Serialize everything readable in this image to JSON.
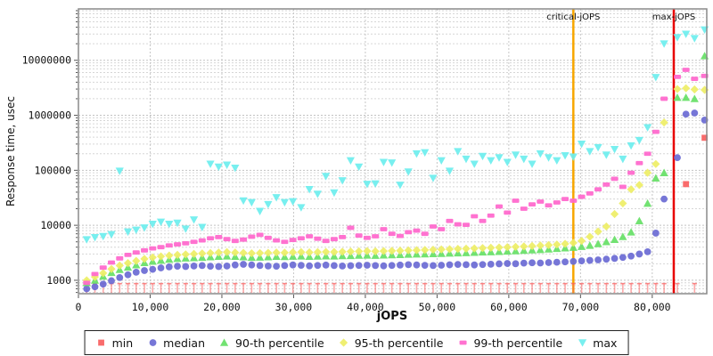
{
  "chart_data": {
    "type": "scatter",
    "title": "",
    "xlabel": "jOPS",
    "ylabel": "Response time, usec",
    "grid": true,
    "legend_position": "bottom",
    "x_axis": {
      "min": 0,
      "max": 87600,
      "ticks": [
        {
          "v": 0,
          "label": "0"
        },
        {
          "v": 10000,
          "label": "10,000"
        },
        {
          "v": 20000,
          "label": "20,000"
        },
        {
          "v": 30000,
          "label": "30,000"
        },
        {
          "v": 40000,
          "label": "40,000"
        },
        {
          "v": 50000,
          "label": "50,000"
        },
        {
          "v": 60000,
          "label": "60,000"
        },
        {
          "v": 70000,
          "label": "70,000"
        },
        {
          "v": 80000,
          "label": "80,000"
        }
      ]
    },
    "y_axis": {
      "log": true,
      "min": 570,
      "max": 86000000,
      "ticks": [
        {
          "v": 1000,
          "label": "1000"
        },
        {
          "v": 10000,
          "label": "10000"
        },
        {
          "v": 100000,
          "label": "100000"
        },
        {
          "v": 1000000,
          "label": "1000000"
        },
        {
          "v": 10000000,
          "label": "10000000"
        }
      ]
    },
    "ref_lines": [
      {
        "label": "critical-jOPS",
        "x": 69000,
        "color": "#f7a600"
      },
      {
        "label": "max-jOPS",
        "x": 83000,
        "color": "#e80000"
      }
    ],
    "x": [
      1150,
      2300,
      3450,
      4600,
      5750,
      6900,
      8050,
      9200,
      10350,
      11500,
      12650,
      13800,
      14950,
      16100,
      17250,
      18400,
      19550,
      20700,
      21850,
      23000,
      24150,
      25300,
      26450,
      27600,
      28750,
      29900,
      31050,
      32200,
      33350,
      34500,
      35650,
      36800,
      37950,
      39100,
      40250,
      41400,
      42550,
      43700,
      44850,
      46000,
      47150,
      48300,
      49450,
      50600,
      51750,
      52900,
      54050,
      55200,
      56350,
      57500,
      58650,
      59800,
      60950,
      62100,
      63250,
      64400,
      65550,
      66700,
      67850,
      69000,
      70150,
      71300,
      72450,
      73600,
      74750,
      75900,
      77050,
      78200,
      79350,
      80500,
      81650,
      83500,
      84700,
      85900,
      87300
    ],
    "series": [
      {
        "name": "min",
        "color": "#f96060",
        "marker": "stem-square",
        "values": [
          870,
          870,
          870,
          870,
          870,
          870,
          870,
          870,
          870,
          870,
          870,
          870,
          870,
          870,
          870,
          870,
          870,
          870,
          870,
          870,
          870,
          870,
          870,
          870,
          870,
          870,
          870,
          870,
          870,
          870,
          870,
          870,
          870,
          870,
          870,
          870,
          870,
          870,
          870,
          870,
          870,
          870,
          870,
          870,
          870,
          870,
          870,
          870,
          870,
          870,
          870,
          870,
          870,
          870,
          870,
          870,
          870,
          870,
          870,
          870,
          870,
          870,
          870,
          870,
          870,
          870,
          870,
          870,
          870,
          870,
          870,
          870,
          56000,
          870,
          390000
        ]
      },
      {
        "name": "median",
        "color": "#6a6ad4",
        "marker": "circle",
        "values": [
          700,
          760,
          850,
          980,
          1120,
          1260,
          1400,
          1500,
          1580,
          1680,
          1750,
          1800,
          1780,
          1820,
          1850,
          1800,
          1780,
          1820,
          1900,
          1950,
          1900,
          1850,
          1820,
          1800,
          1850,
          1900,
          1870,
          1830,
          1860,
          1890,
          1850,
          1820,
          1840,
          1860,
          1880,
          1850,
          1830,
          1860,
          1890,
          1920,
          1900,
          1870,
          1850,
          1880,
          1910,
          1940,
          1920,
          1900,
          1930,
          1960,
          1990,
          2020,
          2000,
          2050,
          2080,
          2060,
          2100,
          2130,
          2160,
          2200,
          2250,
          2300,
          2350,
          2420,
          2500,
          2600,
          2750,
          3000,
          3300,
          7200,
          30000,
          170000,
          1050000,
          1100000,
          820000
        ]
      },
      {
        "name": "90-th percentile",
        "color": "#66e066",
        "marker": "triangle-up",
        "values": [
          900,
          1000,
          1180,
          1380,
          1560,
          1720,
          1900,
          2080,
          2200,
          2300,
          2400,
          2480,
          2520,
          2560,
          2600,
          2650,
          2700,
          2750,
          2700,
          2650,
          2600,
          2620,
          2650,
          2700,
          2680,
          2720,
          2750,
          2700,
          2730,
          2760,
          2750,
          2780,
          2800,
          2830,
          2850,
          2820,
          2860,
          2890,
          2920,
          2950,
          2980,
          3000,
          3030,
          3060,
          3100,
          3130,
          3160,
          3200,
          3240,
          3280,
          3320,
          3370,
          3420,
          3480,
          3540,
          3600,
          3680,
          3760,
          3850,
          3950,
          4100,
          4300,
          4600,
          5000,
          5500,
          6200,
          7500,
          12000,
          25000,
          72000,
          90000,
          2100000,
          2100000,
          2000000,
          12000000
        ]
      },
      {
        "name": "95-th percentile",
        "color": "#eeee66",
        "marker": "diamond",
        "values": [
          1000,
          1150,
          1350,
          1600,
          1850,
          2050,
          2250,
          2450,
          2600,
          2720,
          2820,
          2900,
          2960,
          3020,
          3080,
          3140,
          3200,
          3260,
          3200,
          3150,
          3100,
          3130,
          3160,
          3200,
          3180,
          3220,
          3260,
          3220,
          3250,
          3280,
          3270,
          3300,
          3330,
          3360,
          3390,
          3360,
          3400,
          3430,
          3460,
          3500,
          3530,
          3560,
          3600,
          3640,
          3680,
          3720,
          3760,
          3800,
          3850,
          3900,
          3950,
          4000,
          4060,
          4130,
          4200,
          4280,
          4370,
          4470,
          4600,
          4800,
          5200,
          6200,
          7700,
          9500,
          16000,
          25000,
          45000,
          54000,
          90000,
          130000,
          740000,
          3000000,
          3100000,
          2950000,
          2900000
        ]
      },
      {
        "name": "99-th percentile",
        "color": "#ff66cc",
        "marker": "hbar",
        "values": [
          900,
          1300,
          1700,
          2100,
          2500,
          2900,
          3200,
          3500,
          3800,
          4000,
          4300,
          4500,
          4700,
          5000,
          5300,
          5800,
          6100,
          5600,
          5200,
          5500,
          6200,
          6700,
          5900,
          5300,
          5000,
          5400,
          5800,
          6300,
          5700,
          5200,
          5600,
          6100,
          9000,
          6500,
          5900,
          6300,
          8500,
          7000,
          6400,
          7500,
          8000,
          7000,
          9500,
          8500,
          12000,
          10400,
          10200,
          14600,
          12000,
          15000,
          22000,
          17000,
          28000,
          20000,
          24000,
          27000,
          23000,
          26000,
          30000,
          28000,
          33000,
          38000,
          45000,
          55000,
          70000,
          50000,
          90000,
          135000,
          200000,
          500000,
          2000000,
          5000000,
          6700000,
          4600000,
          5200000
        ]
      },
      {
        "name": "max",
        "color": "#6ceeee",
        "marker": "triangle-down",
        "values": [
          5500,
          6000,
          6300,
          6800,
          97000,
          7600,
          8200,
          9000,
          10500,
          11500,
          10500,
          11000,
          8600,
          12600,
          9200,
          130000,
          115000,
          125000,
          110000,
          28000,
          26000,
          18000,
          24000,
          32000,
          26000,
          27000,
          21000,
          45000,
          37000,
          78000,
          39000,
          65000,
          150000,
          115000,
          56000,
          57000,
          140000,
          137000,
          54000,
          94000,
          200000,
          210000,
          72000,
          150000,
          97000,
          220000,
          160000,
          130000,
          180000,
          150000,
          170000,
          140000,
          190000,
          160000,
          130000,
          200000,
          170000,
          150000,
          185000,
          175000,
          300000,
          220000,
          260000,
          190000,
          240000,
          160000,
          280000,
          350000,
          600000,
          4900000,
          20000000,
          26000000,
          30000000,
          25000000,
          36000000
        ]
      }
    ]
  }
}
